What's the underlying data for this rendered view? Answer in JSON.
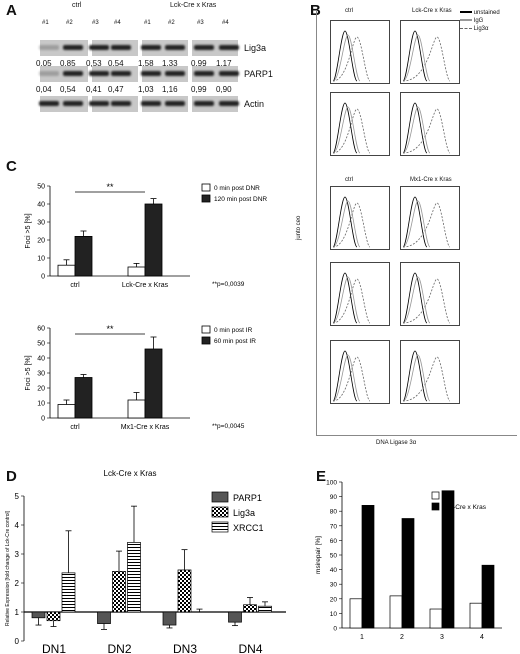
{
  "panels": {
    "A": {
      "label": "A",
      "group_ctrl": "ctrl",
      "group_kras": "Lck-Cre x Kras",
      "lanes": [
        "#1",
        "#2",
        "#3",
        "#4",
        "#1",
        "#2",
        "#3",
        "#4"
      ],
      "blots": [
        {
          "name": "Lig3a",
          "values": [
            "0,05",
            "0,85",
            "0,53",
            "0,54",
            "1,58",
            "1,33",
            "0,99",
            "1,17"
          ]
        },
        {
          "name": "PARP1",
          "values": [
            "0,04",
            "0,54",
            "0,41",
            "0,47",
            "1,03",
            "1,16",
            "0,99",
            "0,90"
          ]
        },
        {
          "name": "Actin",
          "values": []
        }
      ]
    },
    "B": {
      "label": "B",
      "col_titles_top": [
        "ctrl",
        "Lck-Cre x Kras"
      ],
      "col_titles_mid": [
        "ctrl",
        "Mx1-Cre x Kras"
      ],
      "legend": [
        "unstained",
        "IgG",
        "Lig3α"
      ],
      "ylabel": "junto ceo",
      "xlabel": "DNA Ligase 3α"
    },
    "C": {
      "label": "C",
      "top": {
        "ylabel": "Foci >5 [%]",
        "legend": [
          "0 min post DNR",
          "120 min post DNR"
        ],
        "categories": [
          "ctrl",
          "Lck-Cre x Kras"
        ],
        "sig": "**",
        "pval": "**p=0,0039",
        "ticks": [
          "0",
          "10",
          "20",
          "30",
          "40",
          "50"
        ]
      },
      "bottom": {
        "ylabel": "Foci >5 [%]",
        "legend": [
          "0 min post IR",
          "60 min post IR"
        ],
        "categories": [
          "ctrl",
          "Mx1-Cre x Kras"
        ],
        "sig": "**",
        "pval": "**p=0,0045",
        "ticks": [
          "0",
          "10",
          "20",
          "30",
          "40",
          "50",
          "60"
        ]
      }
    },
    "D": {
      "label": "D",
      "title": "Lck-Cre x Kras",
      "ylabel": "Relative Expression [fold change of Lck-Cre control]",
      "legend": [
        "PARP1",
        "Lig3a",
        "XRCC1"
      ],
      "ticks": [
        "0",
        "1",
        "2",
        "3",
        "4",
        "5"
      ]
    },
    "E": {
      "label": "E",
      "ylabel": "msirepair [%]",
      "legend": [
        "ctrl",
        "Lck-Cre x Kras"
      ],
      "ticks": [
        "0",
        "10",
        "20",
        "30",
        "40",
        "50",
        "60",
        "70",
        "80",
        "90",
        "100"
      ]
    }
  },
  "chart_data": [
    {
      "type": "bar",
      "panel": "C-top",
      "categories": [
        "ctrl",
        "Lck-Cre x Kras"
      ],
      "series": [
        {
          "name": "0 min post DNR",
          "values": [
            6,
            5
          ],
          "errors": [
            3,
            2
          ]
        },
        {
          "name": "120 min post DNR",
          "values": [
            22,
            40
          ],
          "errors": [
            3,
            3
          ]
        }
      ],
      "ylim": [
        0,
        50
      ],
      "ylabel": "Foci >5 [%]"
    },
    {
      "type": "bar",
      "panel": "C-bottom",
      "categories": [
        "ctrl",
        "Mx1-Cre x Kras"
      ],
      "series": [
        {
          "name": "0 min post IR",
          "values": [
            9,
            12
          ],
          "errors": [
            3,
            5
          ]
        },
        {
          "name": "60 min post IR",
          "values": [
            27,
            46
          ],
          "errors": [
            2,
            8
          ]
        }
      ],
      "ylim": [
        0,
        60
      ],
      "ylabel": "Foci >5 [%]"
    },
    {
      "type": "bar",
      "panel": "D",
      "categories": [
        "DN1",
        "DN2",
        "DN3",
        "DN4"
      ],
      "series": [
        {
          "name": "PARP1",
          "values": [
            0.8,
            0.6,
            0.55,
            0.65
          ],
          "errors": [
            0.25,
            0.2,
            0.1,
            0.12
          ]
        },
        {
          "name": "Lig3a",
          "values": [
            0.7,
            2.4,
            2.45,
            1.25
          ],
          "errors": [
            0.2,
            0.7,
            0.7,
            0.25
          ]
        },
        {
          "name": "XRCC1",
          "values": [
            2.35,
            3.4,
            1.0,
            1.2
          ],
          "errors": [
            1.45,
            1.25,
            0.1,
            0.15
          ]
        }
      ],
      "baseline": 1,
      "ylim": [
        0,
        5
      ]
    },
    {
      "type": "bar",
      "panel": "E",
      "categories": [
        "1",
        "2",
        "3",
        "4"
      ],
      "series": [
        {
          "name": "ctrl",
          "values": [
            20,
            22,
            13,
            17
          ]
        },
        {
          "name": "Lck-Cre x Kras",
          "values": [
            84,
            75,
            94,
            43
          ]
        }
      ],
      "ylim": [
        0,
        100
      ],
      "ylabel": "msirepair [%]"
    }
  ]
}
